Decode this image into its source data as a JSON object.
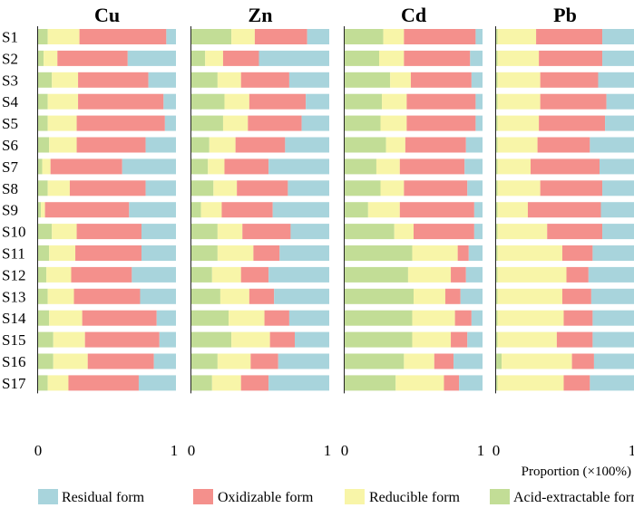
{
  "chart_data": [
    {
      "type": "stacked-bar-horizontal",
      "title": "Cu",
      "x_range": [
        0,
        1
      ],
      "categories": [
        "S1",
        "S2",
        "S3",
        "S4",
        "S5",
        "S6",
        "S7",
        "S8",
        "S9",
        "S10",
        "S11",
        "S12",
        "S13",
        "S14",
        "S15",
        "S16",
        "S17"
      ],
      "series": [
        {
          "name": "Acid-extractable form",
          "values": [
            0.07,
            0.04,
            0.1,
            0.07,
            0.07,
            0.08,
            0.03,
            0.07,
            0.02,
            0.1,
            0.08,
            0.06,
            0.07,
            0.08,
            0.11,
            0.11,
            0.07
          ]
        },
        {
          "name": "Reducible form",
          "values": [
            0.23,
            0.1,
            0.19,
            0.22,
            0.21,
            0.2,
            0.06,
            0.16,
            0.03,
            0.18,
            0.19,
            0.18,
            0.19,
            0.24,
            0.23,
            0.25,
            0.15
          ]
        },
        {
          "name": "Oxidizable form",
          "values": [
            0.63,
            0.51,
            0.51,
            0.62,
            0.64,
            0.5,
            0.52,
            0.55,
            0.61,
            0.47,
            0.48,
            0.44,
            0.48,
            0.54,
            0.54,
            0.48,
            0.51
          ]
        },
        {
          "name": "Residual form",
          "values": [
            0.07,
            0.35,
            0.2,
            0.09,
            0.08,
            0.22,
            0.39,
            0.22,
            0.34,
            0.25,
            0.25,
            0.32,
            0.26,
            0.14,
            0.12,
            0.16,
            0.27
          ]
        }
      ]
    },
    {
      "type": "stacked-bar-horizontal",
      "title": "Zn",
      "x_range": [
        0,
        1
      ],
      "categories": [
        "S1",
        "S2",
        "S3",
        "S4",
        "S5",
        "S6",
        "S7",
        "S8",
        "S9",
        "S10",
        "S11",
        "S12",
        "S13",
        "S14",
        "S15",
        "S16",
        "S17"
      ],
      "series": [
        {
          "name": "Acid-extractable form",
          "values": [
            0.29,
            0.1,
            0.19,
            0.24,
            0.23,
            0.13,
            0.12,
            0.16,
            0.07,
            0.19,
            0.19,
            0.15,
            0.21,
            0.27,
            0.29,
            0.19,
            0.15
          ]
        },
        {
          "name": "Reducible form",
          "values": [
            0.17,
            0.13,
            0.17,
            0.18,
            0.18,
            0.19,
            0.12,
            0.17,
            0.15,
            0.18,
            0.26,
            0.21,
            0.21,
            0.26,
            0.28,
            0.24,
            0.21
          ]
        },
        {
          "name": "Oxidizable form",
          "values": [
            0.38,
            0.26,
            0.35,
            0.41,
            0.39,
            0.36,
            0.32,
            0.37,
            0.37,
            0.35,
            0.19,
            0.2,
            0.18,
            0.18,
            0.18,
            0.2,
            0.2
          ]
        },
        {
          "name": "Residual form",
          "values": [
            0.16,
            0.51,
            0.29,
            0.17,
            0.2,
            0.32,
            0.44,
            0.3,
            0.41,
            0.28,
            0.36,
            0.44,
            0.4,
            0.29,
            0.25,
            0.37,
            0.44
          ]
        }
      ]
    },
    {
      "type": "stacked-bar-horizontal",
      "title": "Cd",
      "x_range": [
        0,
        1
      ],
      "categories": [
        "S1",
        "S2",
        "S3",
        "S4",
        "S5",
        "S6",
        "S7",
        "S8",
        "S9",
        "S10",
        "S11",
        "S12",
        "S13",
        "S14",
        "S15",
        "S16",
        "S17"
      ],
      "series": [
        {
          "name": "Acid-extractable form",
          "values": [
            0.28,
            0.25,
            0.33,
            0.27,
            0.26,
            0.3,
            0.23,
            0.26,
            0.17,
            0.36,
            0.49,
            0.46,
            0.5,
            0.49,
            0.49,
            0.43,
            0.37
          ]
        },
        {
          "name": "Reducible form",
          "values": [
            0.15,
            0.18,
            0.15,
            0.18,
            0.19,
            0.14,
            0.17,
            0.17,
            0.23,
            0.14,
            0.33,
            0.31,
            0.23,
            0.31,
            0.28,
            0.22,
            0.35
          ]
        },
        {
          "name": "Oxidizable form",
          "values": [
            0.52,
            0.48,
            0.44,
            0.5,
            0.5,
            0.44,
            0.47,
            0.46,
            0.54,
            0.44,
            0.08,
            0.11,
            0.11,
            0.12,
            0.12,
            0.14,
            0.11
          ]
        },
        {
          "name": "Residual form",
          "values": [
            0.05,
            0.09,
            0.08,
            0.05,
            0.05,
            0.12,
            0.13,
            0.11,
            0.06,
            0.06,
            0.1,
            0.12,
            0.16,
            0.08,
            0.11,
            0.21,
            0.17
          ]
        }
      ]
    },
    {
      "type": "stacked-bar-horizontal",
      "title": "Pb",
      "x_range": [
        0,
        1
      ],
      "categories": [
        "S1",
        "S2",
        "S3",
        "S4",
        "S5",
        "S6",
        "S7",
        "S8",
        "S9",
        "S10",
        "S11",
        "S12",
        "S13",
        "S14",
        "S15",
        "S16",
        "S17"
      ],
      "series": [
        {
          "name": "Acid-extractable form",
          "values": [
            0.01,
            0.01,
            0.01,
            0.01,
            0.01,
            0.01,
            0.01,
            0.01,
            0.01,
            0.01,
            0.01,
            0.01,
            0.01,
            0.01,
            0.01,
            0.04,
            0.01
          ]
        },
        {
          "name": "Reducible form",
          "values": [
            0.28,
            0.3,
            0.31,
            0.31,
            0.3,
            0.29,
            0.24,
            0.31,
            0.22,
            0.36,
            0.47,
            0.5,
            0.47,
            0.48,
            0.43,
            0.51,
            0.48
          ]
        },
        {
          "name": "Oxidizable form",
          "values": [
            0.48,
            0.46,
            0.42,
            0.48,
            0.48,
            0.38,
            0.5,
            0.45,
            0.53,
            0.4,
            0.22,
            0.16,
            0.21,
            0.21,
            0.26,
            0.16,
            0.19
          ]
        },
        {
          "name": "Residual form",
          "values": [
            0.23,
            0.23,
            0.26,
            0.2,
            0.21,
            0.32,
            0.25,
            0.23,
            0.24,
            0.23,
            0.3,
            0.33,
            0.31,
            0.3,
            0.3,
            0.29,
            0.32
          ]
        }
      ]
    }
  ],
  "colors": {
    "Acid-extractable form": "#c2dd96",
    "Reducible form": "#f8f5a8",
    "Oxidizable form": "#f4908c",
    "Residual form": "#a8d4dc"
  },
  "axis": {
    "tick_min": "0",
    "tick_max": "1",
    "xlabel": "Proportion (×100%)"
  },
  "legend": [
    {
      "key": "Residual form",
      "label": "Residual form"
    },
    {
      "key": "Oxidizable form",
      "label": "Oxidizable form"
    },
    {
      "key": "Reducible form",
      "label": "Reducible form"
    },
    {
      "key": "Acid-extractable form",
      "label": "Acid-extractable form"
    }
  ]
}
